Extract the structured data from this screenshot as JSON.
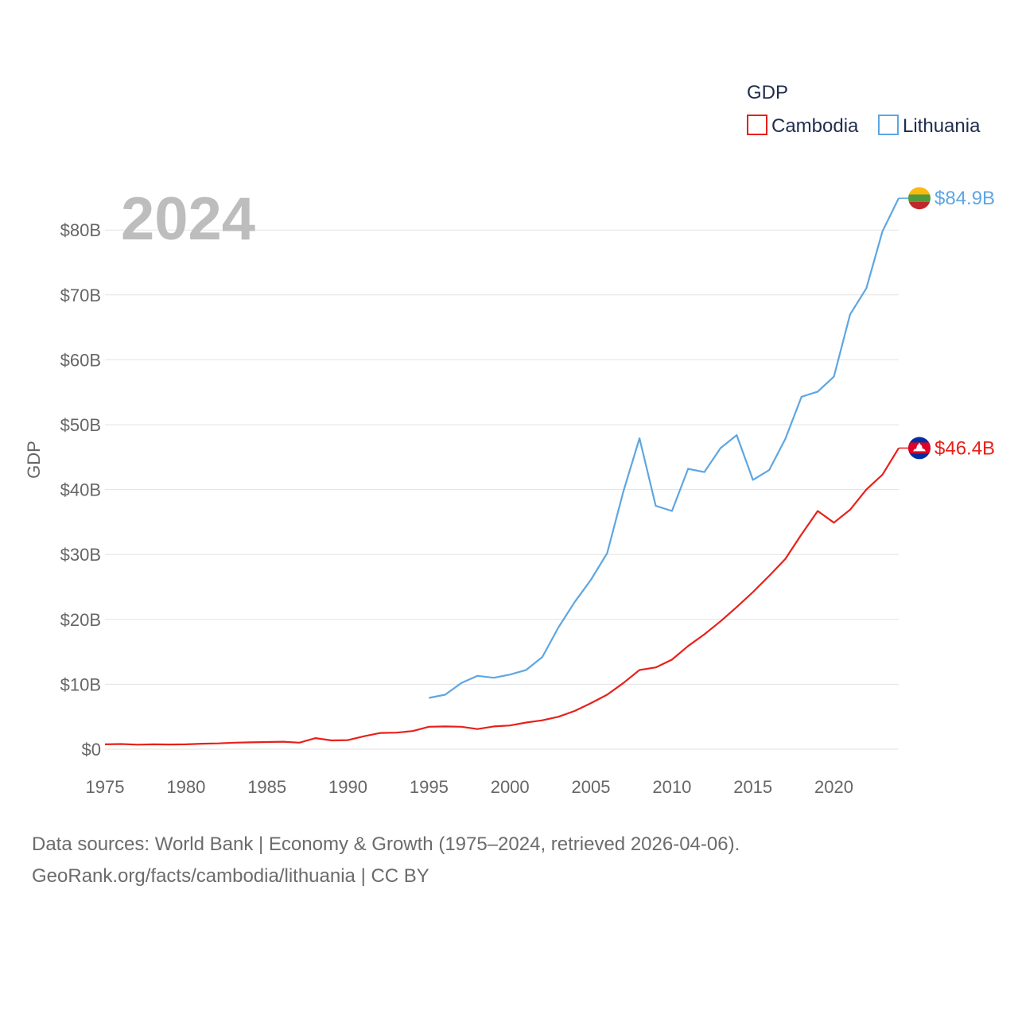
{
  "chart_data": {
    "type": "line",
    "ylabel": "GDP",
    "year_label": "2024",
    "legend_title": "GDP",
    "legend_placement": "top-right",
    "x_ticks": [
      1975,
      1980,
      1985,
      1990,
      1995,
      2000,
      2005,
      2010,
      2015,
      2020
    ],
    "xlim": [
      1975,
      2024
    ],
    "ylim": [
      0,
      86
    ],
    "y_ticks": [
      0,
      10,
      20,
      30,
      40,
      50,
      60,
      70,
      80
    ],
    "y_tick_labels": [
      "$0",
      "$10B",
      "$20B",
      "$30B",
      "$40B",
      "$50B",
      "$60B",
      "$70B",
      "$80B"
    ],
    "series": [
      {
        "name": "Cambodia",
        "color": "#e8201a",
        "end_label": "$46.4B",
        "flag": "cambodia-flag",
        "x": [
          1975,
          1976,
          1977,
          1978,
          1979,
          1980,
          1981,
          1982,
          1983,
          1984,
          1985,
          1986,
          1987,
          1988,
          1989,
          1990,
          1991,
          1992,
          1993,
          1994,
          1995,
          1996,
          1997,
          1998,
          1999,
          2000,
          2001,
          2002,
          2003,
          2004,
          2005,
          2006,
          2007,
          2008,
          2009,
          2010,
          2011,
          2012,
          2013,
          2014,
          2015,
          2016,
          2017,
          2018,
          2019,
          2020,
          2021,
          2022,
          2023,
          2024
        ],
        "values": [
          0.75,
          0.8,
          0.7,
          0.75,
          0.72,
          0.75,
          0.85,
          0.9,
          1.0,
          1.05,
          1.1,
          1.15,
          1.0,
          1.7,
          1.35,
          1.4,
          2.0,
          2.5,
          2.55,
          2.8,
          3.45,
          3.5,
          3.45,
          3.1,
          3.5,
          3.65,
          4.1,
          4.45,
          5.0,
          5.9,
          7.1,
          8.4,
          10.2,
          12.2,
          12.6,
          13.8,
          15.9,
          17.7,
          19.7,
          21.9,
          24.2,
          26.7,
          29.3,
          33.1,
          36.7,
          34.9,
          36.9,
          40.0,
          42.3,
          46.4
        ]
      },
      {
        "name": "Lithuania",
        "color": "#5ea6e2",
        "end_label": "$84.9B",
        "flag": "lithuania-flag",
        "x": [
          1995,
          1996,
          1997,
          1998,
          1999,
          2000,
          2001,
          2002,
          2003,
          2004,
          2005,
          2006,
          2007,
          2008,
          2009,
          2010,
          2011,
          2012,
          2013,
          2014,
          2015,
          2016,
          2017,
          2018,
          2019,
          2020,
          2021,
          2022,
          2023,
          2024
        ],
        "values": [
          7.9,
          8.4,
          10.2,
          11.3,
          11.0,
          11.5,
          12.2,
          14.2,
          18.8,
          22.7,
          26.1,
          30.2,
          39.7,
          47.9,
          37.5,
          36.7,
          43.2,
          42.7,
          46.4,
          48.4,
          41.5,
          43.0,
          47.8,
          54.3,
          55.1,
          57.4,
          67.0,
          71.0,
          79.8,
          84.9
        ]
      }
    ]
  },
  "footer": {
    "line1": "Data sources: World Bank | Economy & Growth (1975–2024, retrieved 2026-04-06).",
    "line2": "GeoRank.org/facts/cambodia/lithuania | CC BY"
  }
}
